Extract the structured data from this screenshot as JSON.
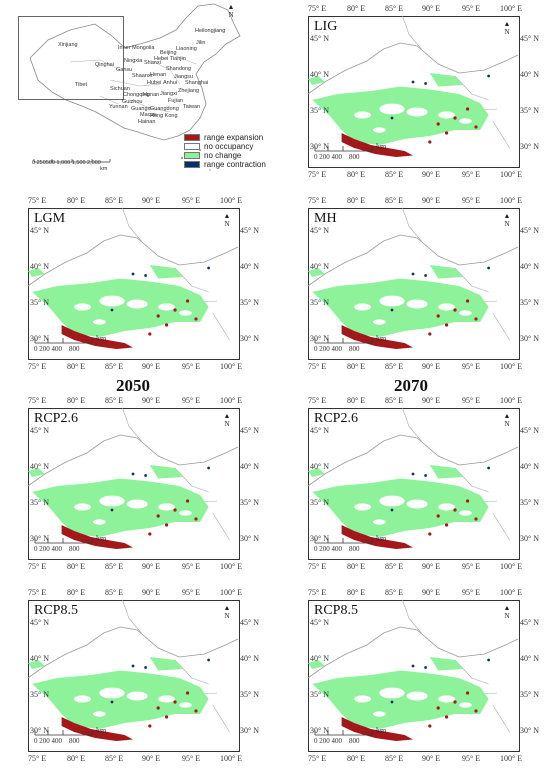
{
  "legend": {
    "items": [
      {
        "label": "range expansion",
        "color": "#a3181b"
      },
      {
        "label": "no occupancy",
        "color": "#ffffff"
      },
      {
        "label": "no change",
        "color": "#8ef29b"
      },
      {
        "label": "range contraction",
        "color": "#0b2f6b"
      }
    ]
  },
  "overview": {
    "scale_labels": "0 250500 1,000 1,500 2,000",
    "scale_unit": "km",
    "provinces": [
      "Heilongjiang",
      "Xinjiang",
      "Jilin",
      "Inner Mongolia",
      "Liaoning",
      "Beijing",
      "Hebei Tianjin",
      "Ningxia",
      "Shanxi",
      "Qinghai",
      "Gansu",
      "Shandong",
      "Shaanxi",
      "Henan",
      "Jiangsu",
      "Tibet",
      "Sichuan",
      "Hubei",
      "Anhui",
      "Shanghai",
      "Chongqing",
      "Hunan",
      "Jiangxi",
      "Zhejiang",
      "Guizhou",
      "Yunnan",
      "Guangxi",
      "Fujian",
      "Taiwan",
      "Guangdong",
      "Macau",
      "Hong Kong",
      "Hainan"
    ]
  },
  "axes": {
    "lon_ticks": [
      "75° E",
      "80° E",
      "85° E",
      "90° E",
      "95° E",
      "100° E"
    ],
    "lat_ticks": [
      "45° N",
      "40° N",
      "35° N",
      "30° N"
    ]
  },
  "scalebar": {
    "labels": [
      "0",
      "200 400",
      "800"
    ],
    "unit": "km"
  },
  "north_label": "N",
  "years": {
    "left": "2050",
    "right": "2070"
  },
  "panels": [
    {
      "title": "LIG"
    },
    {
      "title": "LGM"
    },
    {
      "title": "MH"
    },
    {
      "title": "RCP2.6"
    },
    {
      "title": "RCP2.6"
    },
    {
      "title": "RCP8.5"
    },
    {
      "title": "RCP8.5"
    }
  ]
}
